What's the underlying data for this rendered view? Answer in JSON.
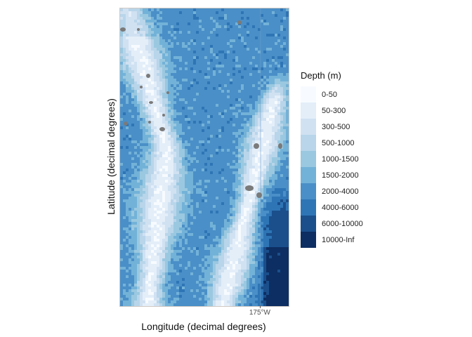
{
  "map": {
    "x_axis_title": "Longitude (decimal degrees)",
    "y_axis_title": "Latitude (decimal degrees)",
    "x_ticks": [
      {
        "label": "175°W",
        "frac": 0.833
      }
    ],
    "land_color": "#7a7a7a"
  },
  "legend": {
    "title": "Depth (m)",
    "items": [
      {
        "label": "0-50",
        "color": "#f7fbff"
      },
      {
        "label": "50-300",
        "color": "#e3eef9"
      },
      {
        "label": "300-500",
        "color": "#d0e1f2"
      },
      {
        "label": "500-1000",
        "color": "#b8d5ea"
      },
      {
        "label": "1000-1500",
        "color": "#9ac8e0"
      },
      {
        "label": "1500-2000",
        "color": "#73b2d8"
      },
      {
        "label": "2000-4000",
        "color": "#4a8fc7"
      },
      {
        "label": "4000-6000",
        "color": "#2e75b6"
      },
      {
        "label": "6000-10000",
        "color": "#1a4f8c"
      },
      {
        "label": "10000-Inf",
        "color": "#0d2e62"
      }
    ]
  }
}
